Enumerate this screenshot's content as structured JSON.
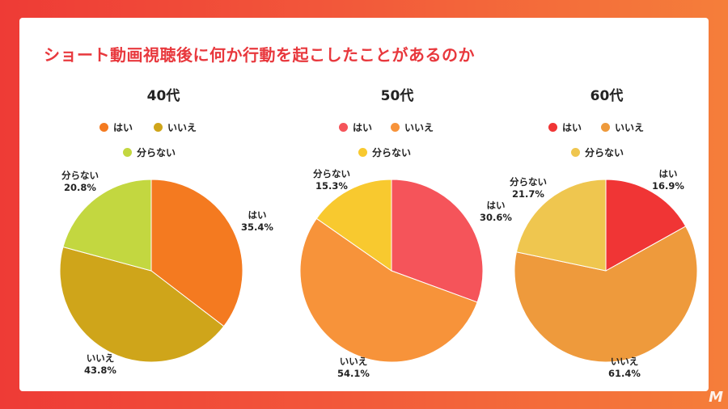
{
  "title": "ショート動画視聴後に何か行動を起こしたことがあるのか",
  "chart_data": [
    {
      "type": "pie",
      "title": "40代",
      "slices": [
        {
          "label": "はい",
          "value": 35.4,
          "value_label": "35.4%",
          "color": "#f47a20"
        },
        {
          "label": "いいえ",
          "value": 43.8,
          "value_label": "43.8%",
          "color": "#cfa51a"
        },
        {
          "label": "分らない",
          "value": 20.8,
          "value_label": "20.8%",
          "color": "#c3d740"
        }
      ]
    },
    {
      "type": "pie",
      "title": "50代",
      "slices": [
        {
          "label": "はい",
          "value": 30.6,
          "value_label": "30.6%",
          "color": "#f5545a"
        },
        {
          "label": "いいえ",
          "value": 54.1,
          "value_label": "54.1%",
          "color": "#f7933a"
        },
        {
          "label": "分らない",
          "value": 15.3,
          "value_label": "15.3%",
          "color": "#f8c92f"
        }
      ]
    },
    {
      "type": "pie",
      "title": "60代",
      "slices": [
        {
          "label": "はい",
          "value": 16.9,
          "value_label": "16.9%",
          "color": "#f03535"
        },
        {
          "label": "いいえ",
          "value": 61.4,
          "value_label": "61.4%",
          "color": "#ee9a3c"
        },
        {
          "label": "分らない",
          "value": 21.7,
          "value_label": "21.7%",
          "color": "#efc64f"
        }
      ]
    }
  ]
}
